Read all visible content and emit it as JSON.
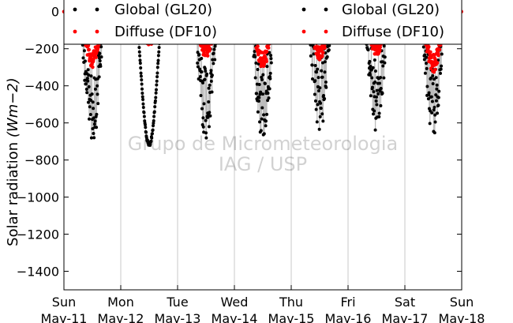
{
  "chart_data": {
    "type": "scatter",
    "ylabel": "Solar radiation",
    "ylabel_unit": "(Wm−2)",
    "ylim": [
      -1500,
      50
    ],
    "yticks": [
      0,
      -200,
      -400,
      -600,
      -800,
      -1000,
      -1200,
      -1400
    ],
    "ytick_labels": [
      "0",
      "−200",
      "−400",
      "−600",
      "−800",
      "−1000",
      "−1200",
      "−1400"
    ],
    "xlim": [
      "2014-05-11T00:00",
      "2014-05-18T00:00"
    ],
    "xticks": [
      {
        "date": "2014-05-11",
        "day": "Sun",
        "date_label": "May-11"
      },
      {
        "date": "2014-05-12",
        "day": "Mon",
        "date_label": "May-12"
      },
      {
        "date": "2014-05-13",
        "day": "Tue",
        "date_label": "May-13"
      },
      {
        "date": "2014-05-14",
        "day": "Wed",
        "date_label": "May-14"
      },
      {
        "date": "2014-05-15",
        "day": "Thu",
        "date_label": "May-15"
      },
      {
        "date": "2014-05-16",
        "day": "Fri",
        "date_label": "May-16"
      },
      {
        "date": "2014-05-17",
        "day": "Sat",
        "date_label": "May-17"
      },
      {
        "date": "2014-05-18",
        "day": "Sun",
        "date_label": "May-18"
      }
    ],
    "grid": "vertical",
    "legend_position": "top",
    "watermark": [
      "Grupo de Micrometeorologia",
      "IAG / USP"
    ],
    "daylight_hours": [
      6.5,
      17.5
    ],
    "series": [
      {
        "name": "Global (GL20)",
        "color": "#000000",
        "daily_peak": [
          {
            "date": "2014-05-11",
            "value": -730
          },
          {
            "date": "2014-05-12",
            "value": -730
          },
          {
            "date": "2014-05-13",
            "value": -700
          },
          {
            "date": "2014-05-14",
            "value": -700
          },
          {
            "date": "2014-05-15",
            "value": -680
          },
          {
            "date": "2014-05-16",
            "value": -670
          },
          {
            "date": "2014-05-17",
            "value": -700
          }
        ]
      },
      {
        "name": "Diffuse (DF10)",
        "color": "#ff0000",
        "daily_peak": [
          {
            "date": "2014-05-11",
            "value": -300
          },
          {
            "date": "2014-05-12",
            "value": -180
          },
          {
            "date": "2014-05-13",
            "value": -250
          },
          {
            "date": "2014-05-14",
            "value": -310
          },
          {
            "date": "2014-05-15",
            "value": -260
          },
          {
            "date": "2014-05-16",
            "value": -240
          },
          {
            "date": "2014-05-17",
            "value": -330
          }
        ]
      }
    ]
  }
}
